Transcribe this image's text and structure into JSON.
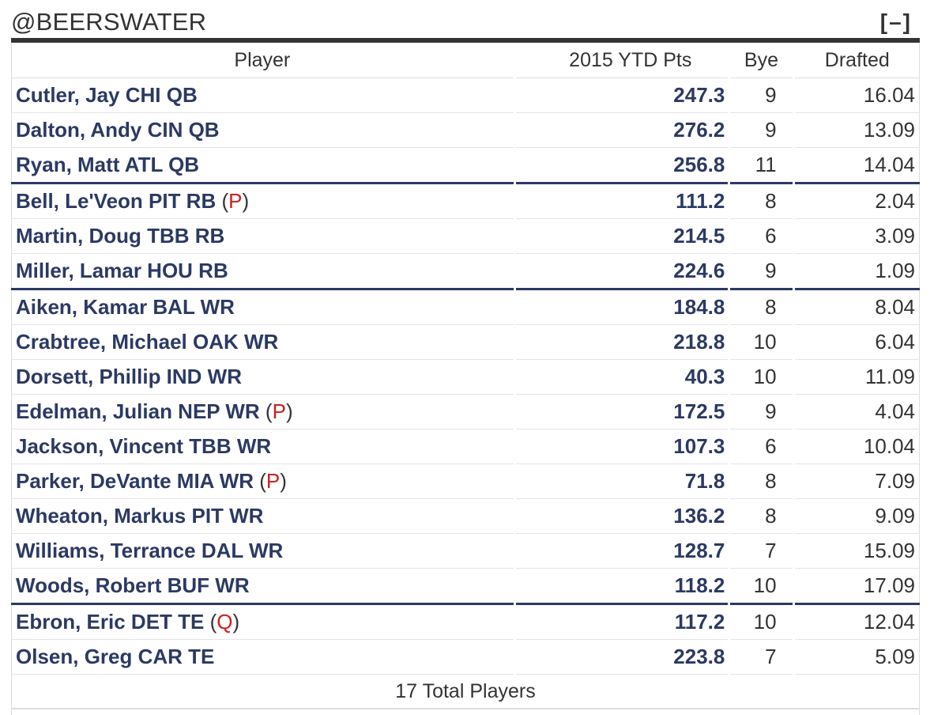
{
  "team": {
    "title": "@BEERSWATER",
    "collapse_label": "[–]"
  },
  "columns": {
    "player": "Player",
    "pts": "2015 YTD Pts",
    "bye": "Bye",
    "drafted": "Drafted"
  },
  "rows": [
    {
      "player": "Cutler, Jay CHI QB",
      "status": "",
      "pts": "247.3",
      "bye": "9",
      "drafted": "16.04"
    },
    {
      "player": "Dalton, Andy CIN QB",
      "status": "",
      "pts": "276.2",
      "bye": "9",
      "drafted": "13.09"
    },
    {
      "player": "Ryan, Matt ATL QB",
      "status": "",
      "pts": "256.8",
      "bye": "11",
      "drafted": "14.04"
    },
    {
      "player": "Bell, Le'Veon PIT RB",
      "status": "P",
      "pts": "111.2",
      "bye": "8",
      "drafted": "2.04"
    },
    {
      "player": "Martin, Doug TBB RB",
      "status": "",
      "pts": "214.5",
      "bye": "6",
      "drafted": "3.09"
    },
    {
      "player": "Miller, Lamar HOU RB",
      "status": "",
      "pts": "224.6",
      "bye": "9",
      "drafted": "1.09"
    },
    {
      "player": "Aiken, Kamar BAL WR",
      "status": "",
      "pts": "184.8",
      "bye": "8",
      "drafted": "8.04"
    },
    {
      "player": "Crabtree, Michael OAK WR",
      "status": "",
      "pts": "218.8",
      "bye": "10",
      "drafted": "6.04"
    },
    {
      "player": "Dorsett, Phillip IND WR",
      "status": "",
      "pts": "40.3",
      "bye": "10",
      "drafted": "11.09"
    },
    {
      "player": "Edelman, Julian NEP WR",
      "status": "P",
      "pts": "172.5",
      "bye": "9",
      "drafted": "4.04"
    },
    {
      "player": "Jackson, Vincent TBB WR",
      "status": "",
      "pts": "107.3",
      "bye": "6",
      "drafted": "10.04"
    },
    {
      "player": "Parker, DeVante MIA WR",
      "status": "P",
      "pts": "71.8",
      "bye": "8",
      "drafted": "7.09"
    },
    {
      "player": "Wheaton, Markus PIT WR",
      "status": "",
      "pts": "136.2",
      "bye": "8",
      "drafted": "9.09"
    },
    {
      "player": "Williams, Terrance DAL WR",
      "status": "",
      "pts": "128.7",
      "bye": "7",
      "drafted": "15.09"
    },
    {
      "player": "Woods, Robert BUF WR",
      "status": "",
      "pts": "118.2",
      "bye": "10",
      "drafted": "17.09"
    },
    {
      "player": "Ebron, Eric DET TE",
      "status": "Q",
      "pts": "117.2",
      "bye": "10",
      "drafted": "12.04"
    },
    {
      "player": "Olsen, Greg CAR TE",
      "status": "",
      "pts": "223.8",
      "bye": "7",
      "drafted": "5.09"
    }
  ],
  "group_end_rows": [
    2,
    5,
    14
  ],
  "footer": "17 Total Players",
  "colors": {
    "player_text": "#2b3a63",
    "status_code": "#cc1f1f",
    "group_divider": "#2b3a63"
  }
}
